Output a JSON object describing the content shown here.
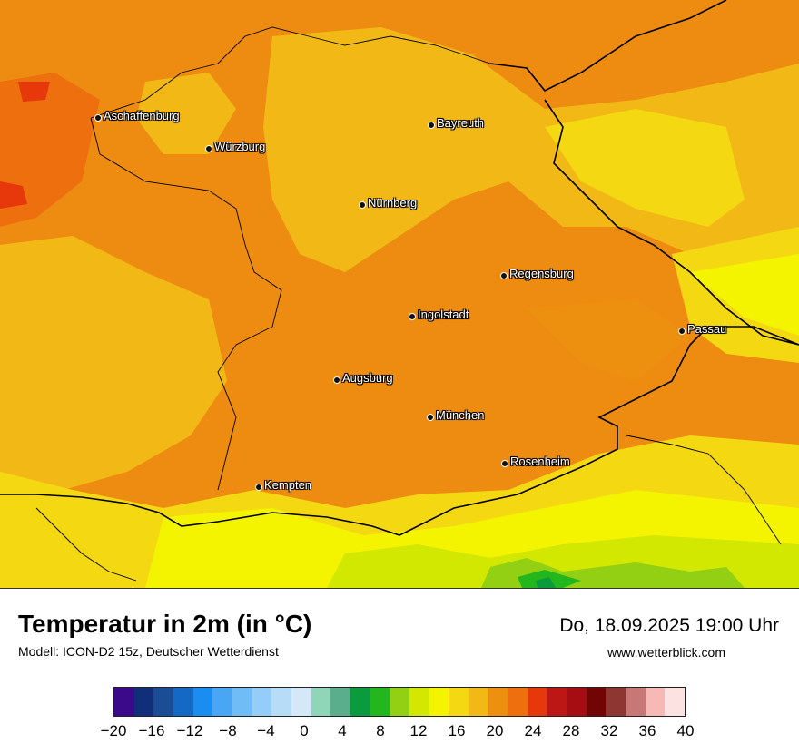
{
  "map": {
    "title": "Temperatur in 2m (in °C)",
    "subtitle": "Modell: ICON-D2 15z, Deutscher Wetterdienst",
    "datetime": "Do, 18.09.2025 19:00 Uhr",
    "website": "www.wetterblick.com",
    "cities": [
      {
        "name": "Aschaffenburg"
      },
      {
        "name": "Würzburg"
      },
      {
        "name": "Bayreuth"
      },
      {
        "name": "Nürnberg"
      },
      {
        "name": "Regensburg"
      },
      {
        "name": "Ingolstadt"
      },
      {
        "name": "Passau"
      },
      {
        "name": "Augsburg"
      },
      {
        "name": "München"
      },
      {
        "name": "Rosenheim"
      },
      {
        "name": "Kempten"
      }
    ]
  },
  "legend": {
    "colors": [
      "#3a0a8a",
      "#102e7a",
      "#1a4d96",
      "#1469c4",
      "#1a8ef0",
      "#49a6f5",
      "#6fbcf7",
      "#94cdf7",
      "#b6dcf8",
      "#d4e8f8",
      "#8fd6b8",
      "#5aae8c",
      "#0b9a3e",
      "#24b61d",
      "#93d013",
      "#d2e800",
      "#f4f400",
      "#f4d812",
      "#f2b916",
      "#ee900f",
      "#ee6f0e",
      "#e6380b",
      "#bd1715",
      "#a60d12",
      "#720504",
      "#8e3732",
      "#c77876",
      "#f6b9b6",
      "#fde2e2"
    ],
    "tick_labels": [
      "−20",
      "−16",
      "−12",
      "−8",
      "−4",
      "0",
      "4",
      "8",
      "12",
      "16",
      "20",
      "24",
      "28",
      "32",
      "36",
      "40"
    ]
  }
}
